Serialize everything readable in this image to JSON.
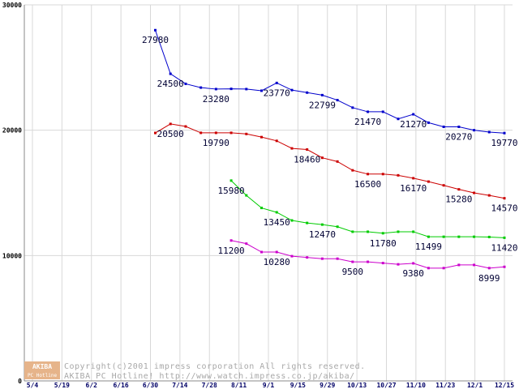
{
  "chart_data": {
    "type": "line",
    "title": "",
    "xlabel": "",
    "ylabel": "",
    "ylim": [
      0,
      30000
    ],
    "y_ticks": [
      0,
      10000,
      20000,
      30000
    ],
    "x_ticks": [
      "5/4",
      "5/19",
      "6/2",
      "6/16",
      "6/30",
      "7/14",
      "7/28",
      "8/11",
      "9/1",
      "9/15",
      "9/29",
      "10/13",
      "10/27",
      "11/10",
      "11/23",
      "12/1",
      "12/15"
    ],
    "grid": true,
    "series": [
      {
        "name": "blue",
        "color": "#0000cc",
        "points": [
          [
            0,
            27980
          ],
          [
            1,
            24500
          ],
          [
            2,
            23700
          ],
          [
            3,
            23400
          ],
          [
            4,
            23280
          ],
          [
            5,
            23300
          ],
          [
            6,
            23280
          ],
          [
            7,
            23150
          ],
          [
            8,
            23770
          ],
          [
            9,
            23200
          ],
          [
            10,
            23000
          ],
          [
            11,
            22799
          ],
          [
            12,
            22400
          ],
          [
            13,
            21800
          ],
          [
            14,
            21470
          ],
          [
            15,
            21470
          ],
          [
            16,
            20900
          ],
          [
            17,
            21270
          ],
          [
            18,
            20600
          ],
          [
            19,
            20270
          ],
          [
            20,
            20270
          ],
          [
            21,
            20000
          ],
          [
            22,
            19850
          ],
          [
            23,
            19770
          ]
        ],
        "labels": [
          {
            "i": 0,
            "text": "27980",
            "pos": "below"
          },
          {
            "i": 1,
            "text": "24500",
            "pos": "below"
          },
          {
            "i": 4,
            "text": "23280",
            "pos": "below"
          },
          {
            "i": 8,
            "text": "23770",
            "pos": "below"
          },
          {
            "i": 11,
            "text": "22799",
            "pos": "below"
          },
          {
            "i": 14,
            "text": "21470",
            "pos": "below"
          },
          {
            "i": 17,
            "text": "21270",
            "pos": "below"
          },
          {
            "i": 20,
            "text": "20270",
            "pos": "below"
          },
          {
            "i": 23,
            "text": "19770",
            "pos": "below"
          }
        ]
      },
      {
        "name": "red",
        "color": "#cc0000",
        "points": [
          [
            0,
            19780
          ],
          [
            1,
            20500
          ],
          [
            2,
            20300
          ],
          [
            3,
            19790
          ],
          [
            4,
            19790
          ],
          [
            5,
            19790
          ],
          [
            6,
            19700
          ],
          [
            7,
            19450
          ],
          [
            8,
            19150
          ],
          [
            9,
            18550
          ],
          [
            10,
            18460
          ],
          [
            11,
            17800
          ],
          [
            12,
            17500
          ],
          [
            13,
            16800
          ],
          [
            14,
            16500
          ],
          [
            15,
            16500
          ],
          [
            16,
            16400
          ],
          [
            17,
            16170
          ],
          [
            18,
            15900
          ],
          [
            19,
            15600
          ],
          [
            20,
            15280
          ],
          [
            21,
            15000
          ],
          [
            22,
            14800
          ],
          [
            23,
            14570
          ]
        ],
        "labels": [
          {
            "i": 1,
            "text": "20500",
            "pos": "below"
          },
          {
            "i": 4,
            "text": "19790",
            "pos": "below"
          },
          {
            "i": 10,
            "text": "18460",
            "pos": "below"
          },
          {
            "i": 14,
            "text": "16500",
            "pos": "below"
          },
          {
            "i": 17,
            "text": "16170",
            "pos": "below"
          },
          {
            "i": 20,
            "text": "15280",
            "pos": "below"
          },
          {
            "i": 23,
            "text": "14570",
            "pos": "below"
          }
        ]
      },
      {
        "name": "green",
        "color": "#00cc00",
        "points": [
          [
            5,
            15980
          ],
          [
            6,
            14800
          ],
          [
            7,
            13800
          ],
          [
            8,
            13450
          ],
          [
            9,
            12800
          ],
          [
            10,
            12600
          ],
          [
            11,
            12470
          ],
          [
            12,
            12300
          ],
          [
            13,
            11900
          ],
          [
            14,
            11900
          ],
          [
            15,
            11780
          ],
          [
            16,
            11900
          ],
          [
            17,
            11900
          ],
          [
            18,
            11499
          ],
          [
            19,
            11499
          ],
          [
            20,
            11499
          ],
          [
            21,
            11499
          ],
          [
            22,
            11480
          ],
          [
            23,
            11420
          ]
        ],
        "labels": [
          {
            "i": 5,
            "text": "15980",
            "pos": "below"
          },
          {
            "i": 8,
            "text": "13450",
            "pos": "below"
          },
          {
            "i": 11,
            "text": "12470",
            "pos": "below"
          },
          {
            "i": 15,
            "text": "11780",
            "pos": "below"
          },
          {
            "i": 18,
            "text": "11499",
            "pos": "below"
          },
          {
            "i": 23,
            "text": "11420",
            "pos": "below"
          }
        ]
      },
      {
        "name": "magenta",
        "color": "#cc00cc",
        "points": [
          [
            5,
            11200
          ],
          [
            6,
            10950
          ],
          [
            7,
            10280
          ],
          [
            8,
            10280
          ],
          [
            9,
            9950
          ],
          [
            10,
            9850
          ],
          [
            11,
            9750
          ],
          [
            12,
            9750
          ],
          [
            13,
            9500
          ],
          [
            14,
            9500
          ],
          [
            15,
            9400
          ],
          [
            16,
            9300
          ],
          [
            17,
            9380
          ],
          [
            18,
            8999
          ],
          [
            19,
            8999
          ],
          [
            20,
            9250
          ],
          [
            21,
            9250
          ],
          [
            22,
            8999
          ],
          [
            23,
            9100
          ]
        ],
        "labels": [
          {
            "i": 5,
            "text": "11200",
            "pos": "below"
          },
          {
            "i": 8,
            "text": "10280",
            "pos": "below"
          },
          {
            "i": 13,
            "text": "9500",
            "pos": "below"
          },
          {
            "i": 17,
            "text": "9380",
            "pos": "below"
          },
          {
            "i": 22,
            "text": "8999",
            "pos": "below"
          }
        ]
      }
    ]
  },
  "footer": {
    "copyright": "Copyright(c)2001 impress corporation All rights reserved.",
    "hotline": "AKIBA PC Hotline!  http://www.watch.impress.co.jp/akiba/",
    "logo_top": "AKIBA",
    "logo_bottom": "PC Hotline"
  }
}
